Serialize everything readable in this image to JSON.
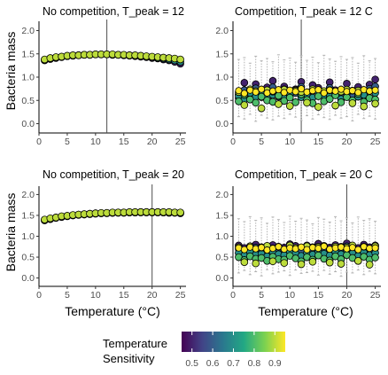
{
  "chart_data": {
    "type": "scatter",
    "ylabel": "Bacteria mass",
    "xlabel": "Temperature (°C)",
    "xlim": [
      0,
      26
    ],
    "ylim": [
      -0.2,
      2.2
    ],
    "x_ticks": [
      0,
      5,
      10,
      15,
      20,
      25
    ],
    "y_ticks": [
      0.0,
      0.5,
      1.0,
      1.5,
      2.0
    ],
    "y_tick_labels": [
      "0.0",
      "0.5",
      "1.0",
      "1.5",
      "2.0"
    ],
    "legend": {
      "title_line1": "Temperature",
      "title_line2": "Sensitivity",
      "placement": "bottom",
      "min": 0.45,
      "max": 0.95,
      "ticks": [
        0.5,
        0.6,
        0.7,
        0.8,
        0.9
      ],
      "tick_labels": [
        "0.5",
        "0.6",
        "0.7",
        "0.8",
        "0.9"
      ],
      "colors": [
        "#440154",
        "#414487",
        "#2a788e",
        "#22a884",
        "#7ad151",
        "#fde725"
      ]
    },
    "x": [
      1,
      2,
      3,
      4,
      5,
      6,
      7,
      8,
      9,
      10,
      11,
      12,
      13,
      14,
      15,
      16,
      17,
      18,
      19,
      20,
      21,
      22,
      23,
      24,
      25
    ],
    "panels": [
      {
        "title": "No competition, T_peak = 12",
        "t_peak": 12,
        "series": [
          {
            "sensitivity": 0.5,
            "y": [
              1.36,
              1.39,
              1.41,
              1.43,
              1.45,
              1.46,
              1.47,
              1.48,
              1.48,
              1.49,
              1.49,
              1.49,
              1.48,
              1.48,
              1.47,
              1.46,
              1.45,
              1.44,
              1.43,
              1.41,
              1.4,
              1.38,
              1.36,
              1.33,
              1.29
            ]
          },
          {
            "sensitivity": 0.7,
            "y": [
              1.37,
              1.4,
              1.42,
              1.44,
              1.45,
              1.46,
              1.47,
              1.48,
              1.48,
              1.49,
              1.49,
              1.49,
              1.48,
              1.48,
              1.47,
              1.47,
              1.46,
              1.45,
              1.44,
              1.43,
              1.41,
              1.4,
              1.38,
              1.36,
              1.33
            ]
          },
          {
            "sensitivity": 0.9,
            "y": [
              1.38,
              1.41,
              1.43,
              1.44,
              1.46,
              1.47,
              1.47,
              1.48,
              1.48,
              1.49,
              1.49,
              1.49,
              1.49,
              1.48,
              1.48,
              1.47,
              1.47,
              1.46,
              1.45,
              1.44,
              1.43,
              1.42,
              1.41,
              1.4,
              1.38
            ]
          }
        ]
      },
      {
        "title": "Competition, T_peak = 12 C",
        "t_peak": 12,
        "error_mean": [
          0.71,
          0.65,
          0.72,
          0.68,
          0.74,
          0.66,
          0.7,
          0.73,
          0.67,
          0.72,
          0.69,
          0.75,
          0.68,
          0.71,
          0.73,
          0.66,
          0.72,
          0.7,
          0.74,
          0.69,
          0.71,
          0.67,
          0.73,
          0.7,
          0.72
        ],
        "error_low": [
          0.15,
          0.1,
          0.2,
          0.05,
          0.18,
          0.12,
          0.08,
          0.16,
          0.11,
          0.2,
          0.14,
          0.07,
          0.17,
          0.1,
          0.19,
          0.13,
          0.09,
          0.18,
          0.12,
          0.15,
          0.06,
          0.2,
          0.11,
          0.16,
          0.1
        ],
        "error_high": [
          1.38,
          1.42,
          1.3,
          1.45,
          1.35,
          1.4,
          1.33,
          1.48,
          1.37,
          1.41,
          1.32,
          1.46,
          1.36,
          1.43,
          1.31,
          1.47,
          1.39,
          1.34,
          1.44,
          1.38,
          1.42,
          1.3,
          1.46,
          1.35,
          1.4
        ],
        "series": [
          {
            "sensitivity": 0.5,
            "y": [
              0.63,
              0.88,
              0.7,
              0.85,
              0.62,
              0.78,
              0.92,
              0.66,
              0.8,
              0.71,
              0.74,
              0.9,
              0.65,
              0.83,
              0.77,
              0.68,
              0.89,
              0.72,
              0.64,
              0.86,
              0.7,
              0.79,
              0.67,
              0.84,
              0.95
            ]
          },
          {
            "sensitivity": 0.6,
            "y": [
              0.55,
              0.72,
              0.6,
              0.76,
              0.57,
              0.69,
              0.78,
              0.58,
              0.74,
              0.62,
              0.66,
              0.79,
              0.59,
              0.71,
              0.68,
              0.61,
              0.77,
              0.65,
              0.58,
              0.73,
              0.63,
              0.7,
              0.6,
              0.75,
              0.8
            ]
          },
          {
            "sensitivity": 0.7,
            "y": [
              0.6,
              0.52,
              0.66,
              0.58,
              0.7,
              0.55,
              0.62,
              0.68,
              0.54,
              0.64,
              0.72,
              0.57,
              0.63,
              0.56,
              0.67,
              0.61,
              0.59,
              0.69,
              0.53,
              0.65,
              0.71,
              0.58,
              0.62,
              0.55,
              0.66
            ]
          },
          {
            "sensitivity": 0.8,
            "y": [
              0.48,
              0.62,
              0.52,
              0.45,
              0.58,
              0.5,
              0.47,
              0.6,
              0.49,
              0.56,
              0.46,
              0.63,
              0.51,
              0.44,
              0.59,
              0.48,
              0.53,
              0.61,
              0.46,
              0.57,
              0.5,
              0.64,
              0.47,
              0.55,
              0.52
            ]
          },
          {
            "sensitivity": 0.9,
            "y": [
              0.68,
              0.4,
              0.74,
              0.7,
              0.33,
              0.72,
              0.69,
              0.42,
              0.73,
              0.38,
              0.71,
              0.68,
              0.45,
              0.74,
              0.36,
              0.7,
              0.72,
              0.39,
              0.69,
              0.73,
              0.44,
              0.71,
              0.37,
              0.7,
              0.43
            ]
          }
        ]
      },
      {
        "title": "No competition, T_peak = 20",
        "t_peak": 20,
        "series": [
          {
            "sensitivity": 0.5,
            "y": [
              1.38,
              1.41,
              1.44,
              1.46,
              1.48,
              1.5,
              1.51,
              1.52,
              1.53,
              1.54,
              1.55,
              1.55,
              1.56,
              1.56,
              1.56,
              1.57,
              1.57,
              1.57,
              1.57,
              1.57,
              1.57,
              1.57,
              1.56,
              1.56,
              1.55
            ]
          },
          {
            "sensitivity": 0.7,
            "y": [
              1.39,
              1.42,
              1.45,
              1.47,
              1.49,
              1.5,
              1.52,
              1.53,
              1.54,
              1.55,
              1.55,
              1.56,
              1.56,
              1.57,
              1.57,
              1.57,
              1.57,
              1.58,
              1.58,
              1.58,
              1.58,
              1.57,
              1.57,
              1.57,
              1.56
            ]
          },
          {
            "sensitivity": 0.9,
            "y": [
              1.4,
              1.43,
              1.45,
              1.48,
              1.49,
              1.51,
              1.52,
              1.53,
              1.54,
              1.55,
              1.56,
              1.56,
              1.57,
              1.57,
              1.57,
              1.58,
              1.58,
              1.58,
              1.58,
              1.58,
              1.58,
              1.58,
              1.58,
              1.57,
              1.57
            ]
          }
        ]
      },
      {
        "title": "Competition, T_peak = 20 C",
        "t_peak": 20,
        "error_mean": [
          0.72,
          0.68,
          0.74,
          0.7,
          0.73,
          0.67,
          0.71,
          0.75,
          0.69,
          0.72,
          0.7,
          0.74,
          0.68,
          0.73,
          0.71,
          0.76,
          0.69,
          0.72,
          0.74,
          0.7,
          0.73,
          0.68,
          0.75,
          0.71,
          0.72
        ],
        "error_low": [
          0.12,
          0.18,
          0.08,
          0.15,
          0.05,
          0.2,
          0.1,
          0.14,
          0.17,
          0.06,
          0.19,
          0.11,
          0.13,
          0.16,
          0.07,
          0.18,
          0.09,
          0.15,
          0.04,
          0.14,
          0.12,
          0.19,
          0.08,
          0.16,
          0.1
        ],
        "error_high": [
          1.42,
          1.35,
          1.47,
          1.38,
          1.44,
          1.31,
          1.46,
          1.4,
          1.33,
          1.48,
          1.36,
          1.43,
          1.39,
          1.3,
          1.45,
          1.41,
          1.34,
          1.47,
          1.37,
          1.44,
          1.32,
          1.46,
          1.38,
          1.42,
          1.36
        ],
        "series": [
          {
            "sensitivity": 0.5,
            "y": [
              0.78,
              0.72,
              0.76,
              0.8,
              0.74,
              0.7,
              0.79,
              0.75,
              0.73,
              0.81,
              0.77,
              0.71,
              0.78,
              0.74,
              0.82,
              0.76,
              0.73,
              0.79,
              0.75,
              0.83,
              0.77,
              0.72,
              0.8,
              0.74,
              0.78
            ]
          },
          {
            "sensitivity": 0.6,
            "y": [
              0.7,
              0.65,
              0.69,
              0.73,
              0.66,
              0.64,
              0.71,
              0.68,
              0.66,
              0.74,
              0.69,
              0.63,
              0.72,
              0.67,
              0.75,
              0.68,
              0.65,
              0.72,
              0.67,
              0.76,
              0.7,
              0.64,
              0.73,
              0.66,
              0.71
            ]
          },
          {
            "sensitivity": 0.7,
            "y": [
              0.6,
              0.54,
              0.62,
              0.56,
              0.58,
              0.52,
              0.61,
              0.57,
              0.55,
              0.63,
              0.59,
              0.53,
              0.6,
              0.56,
              0.64,
              0.58,
              0.54,
              0.62,
              0.57,
              0.65,
              0.59,
              0.53,
              0.61,
              0.55,
              0.6
            ]
          },
          {
            "sensitivity": 0.8,
            "y": [
              0.5,
              0.43,
              0.52,
              0.46,
              0.48,
              0.41,
              0.51,
              0.45,
              0.44,
              0.53,
              0.47,
              0.4,
              0.5,
              0.44,
              0.54,
              0.46,
              0.42,
              0.52,
              0.45,
              0.55,
              0.48,
              0.41,
              0.51,
              0.44,
              0.49
            ]
          },
          {
            "sensitivity": 0.9,
            "y": [
              0.74,
              0.38,
              0.76,
              0.35,
              0.73,
              0.77,
              0.4,
              0.75,
              0.36,
              0.78,
              0.72,
              0.33,
              0.76,
              0.39,
              0.74,
              0.77,
              0.37,
              0.75,
              0.34,
              0.73,
              0.78,
              0.41,
              0.75,
              0.32,
              0.76
            ]
          }
        ]
      }
    ]
  }
}
